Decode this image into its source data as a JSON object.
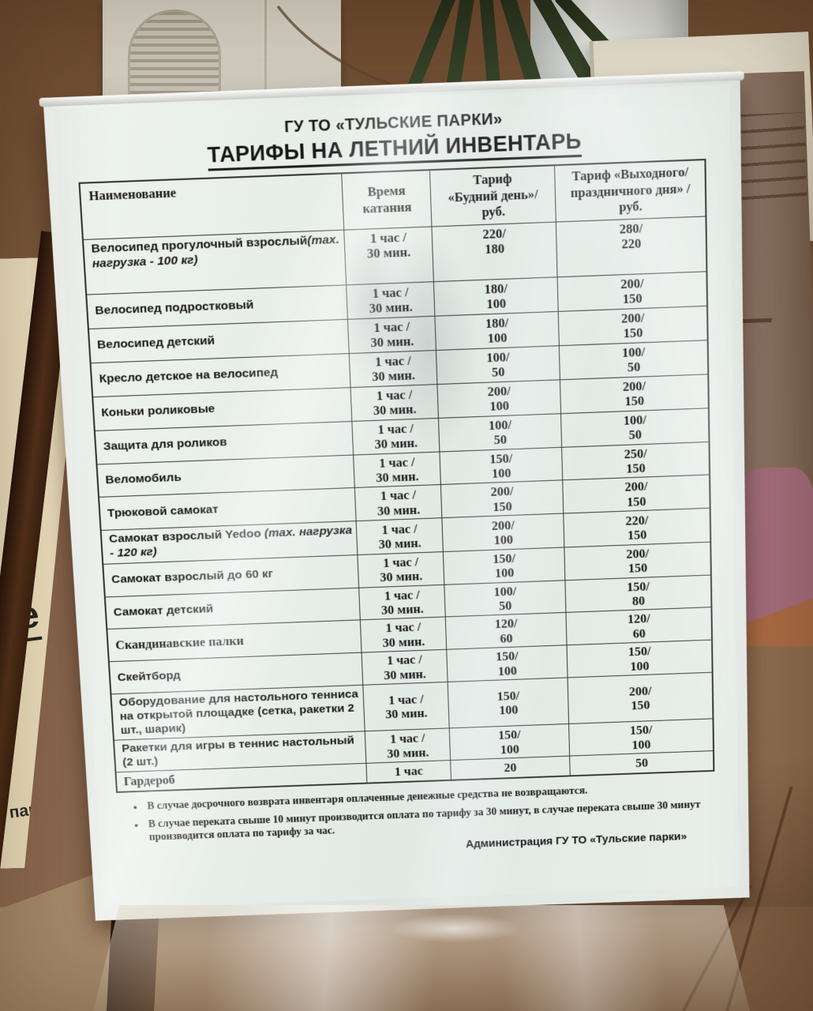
{
  "sign": {
    "org": "ГУ ТО «ТУЛЬСКИЕ ПАРКИ»",
    "title": "ТАРИФЫ НА ЛЕТНИЙ ИНВЕНТАРЬ",
    "table": {
      "columns": [
        "Наименование",
        "Время\nкатания",
        "Тариф\n«Будний день»/\nруб.",
        "Тариф «Выходного/\nпраздничного дня» /\nруб."
      ],
      "rows": [
        {
          "name": "Велосипед прогулочный взрослый",
          "note": "(mах. нагрузка  - 100 кг)",
          "time": "1 час /\n30 мин.",
          "weekday": "220/\n180",
          "weekend": "280/\n220",
          "tall": true
        },
        {
          "name": "Велосипед подростковый",
          "time": "1 час /\n30 мин.",
          "weekday": "180/\n100",
          "weekend": "200/\n150"
        },
        {
          "name": "Велосипед детский",
          "time": "1 час /\n30 мин.",
          "weekday": "180/\n100",
          "weekend": "200/\n150"
        },
        {
          "name": "Кресло детское на велосипед",
          "time": "1 час /\n30 мин.",
          "weekday": "100/\n50",
          "weekend": "100/\n50"
        },
        {
          "name": "Коньки роликовые",
          "time": "1 час /\n30 мин.",
          "weekday": "200/\n100",
          "weekend": "200/\n150"
        },
        {
          "name": "Защита для роликов",
          "time": "1 час /\n30 мин.",
          "weekday": "100/\n50",
          "weekend": "100/\n50"
        },
        {
          "name": "Веломобиль",
          "time": "1 час /\n30 мин.",
          "weekday": "150/\n100",
          "weekend": "250/\n150"
        },
        {
          "name": "Трюковой самокат",
          "time": "1 час /\n30 мин.",
          "weekday": "200/\n150",
          "weekend": "200/\n150"
        },
        {
          "name": "Самокат взрослый Yedoo ",
          "note": "(mах. нагрузка  - 120 кг)",
          "time": "1 час /\n30 мин.",
          "weekday": "200/\n100",
          "weekend": "220/\n150"
        },
        {
          "name": "Самокат взрослый до 60 кг",
          "time": "1 час /\n30 мин.",
          "weekday": "150/\n100",
          "weekend": "200/\n150"
        },
        {
          "name": "Самокат детский",
          "time": "1 час /\n30 мин.",
          "weekday": "100/\n50",
          "weekend": "150/\n80"
        },
        {
          "name": "Скандинавские палки",
          "serif": true,
          "time": "1 час /\n30 мин.",
          "weekday": "120/\n60",
          "weekend": "120/\n60"
        },
        {
          "name": "Скейтборд",
          "time": "1 час /\n30 мин.",
          "weekday": "150/\n100",
          "weekend": "150/\n100"
        },
        {
          "name": "Оборудование для настольного тенниса на открытой площадке (сетка, ракетки 2 шт., шарик)",
          "time": "1 час /\n30 мин.",
          "weekday": "150/\n100",
          "weekend": "200/\n150"
        },
        {
          "name": "Ракетки для игры в теннис настольный (2 шт.)",
          "time": "1 час /\n30 мин.",
          "weekday": "150/\n100",
          "weekend": "150/\n100"
        },
        {
          "name": "Гардероб",
          "serif": true,
          "time": "1 час",
          "weekday": "20",
          "weekend": "50"
        }
      ]
    },
    "notes": [
      "В случае досрочного возврата инвентаря оплаченные денежные средства не возвращаются.",
      "В случае переката свыше 10 минут производится оплата по тарифу за 30 минут, в случае переката свыше 30 минут производится оплата по тарифу за час."
    ],
    "signature": "Администрация ГУ ТО «Тульские парки»"
  },
  "background_sign": {
    "fragment_large": "ское",
    "fragment_small": "ьские парки»"
  },
  "colors": {
    "paper": "#e9efeb",
    "table_border": "#2d2d2d",
    "wall": "#7b593c",
    "desk": "#8a684c",
    "stand_edge": "#53311c",
    "cream_sign": "#ecdfbd",
    "shirt": "#a56f7e"
  }
}
